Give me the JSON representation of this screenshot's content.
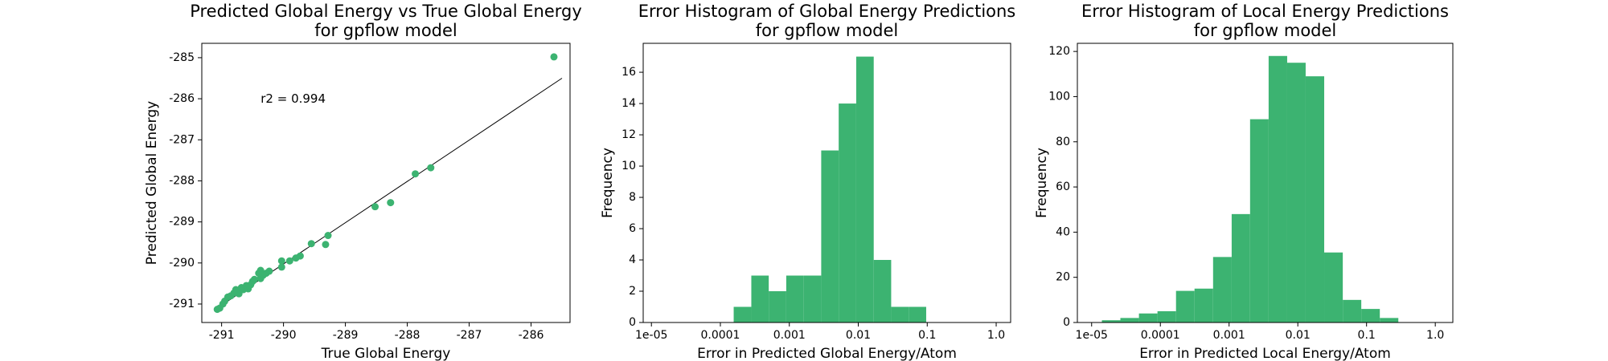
{
  "chart_data": [
    {
      "type": "scatter",
      "title": [
        "Predicted Global Energy vs True Global Energy",
        "for gpflow model"
      ],
      "xlabel": "True Global Energy",
      "ylabel": "Predicted Global Energy",
      "annotation": "r2 = 0.994",
      "color": "#3cb371",
      "x": [
        -285.63,
        -287.62,
        -287.87,
        -288.27,
        -288.52,
        -289.28,
        -289.32,
        -289.55,
        -289.73,
        -289.8,
        -289.9,
        -290.03,
        -290.03,
        -290.23,
        -290.28,
        -290.33,
        -290.37,
        -290.37,
        -290.4,
        -290.47,
        -290.5,
        -290.53,
        -290.57,
        -290.6,
        -290.65,
        -290.68,
        -290.72,
        -290.77,
        -290.8,
        -290.85,
        -290.9,
        -290.95,
        -290.98,
        -291.03,
        -291.07
      ],
      "y": [
        -284.98,
        -287.68,
        -287.83,
        -288.53,
        -288.63,
        -289.33,
        -289.55,
        -289.53,
        -289.83,
        -289.88,
        -289.95,
        -289.95,
        -290.1,
        -290.2,
        -290.25,
        -290.3,
        -290.18,
        -290.38,
        -290.25,
        -290.4,
        -290.45,
        -290.53,
        -290.63,
        -290.55,
        -290.65,
        -290.6,
        -290.75,
        -290.65,
        -290.73,
        -290.8,
        -290.83,
        -290.93,
        -291.0,
        -291.1,
        -291.13
      ],
      "fit_line": {
        "x": [
          -291.07,
          -285.5
        ],
        "y": [
          -291.1,
          -285.5
        ]
      },
      "xlim": [
        -291.32,
        -285.37
      ],
      "ylim": [
        -291.45,
        -284.65
      ],
      "xticks": [
        -291,
        -290,
        -289,
        -288,
        -287,
        -286
      ],
      "yticks": [
        -291,
        -290,
        -289,
        -288,
        -287,
        -286,
        -285
      ]
    },
    {
      "type": "histogram",
      "title": [
        "Error Histogram of Global Energy Predictions",
        "for gpflow model"
      ],
      "xlabel": "Error in Predicted Global Energy/Atom",
      "ylabel": "Frequency",
      "color": "#3cb371",
      "xscale": "log",
      "bins": [
        0.000156,
        0.000281,
        0.000503,
        0.000902,
        0.00162,
        0.0029,
        0.0052,
        0.00933,
        0.01675,
        0.03,
        0.0538,
        0.0966
      ],
      "values": [
        1,
        3,
        2,
        3,
        3,
        11,
        14,
        17,
        4,
        1,
        1
      ],
      "xlim": [
        7.6e-06,
        1.62
      ],
      "ylim": [
        0,
        17.85
      ],
      "xticks": [
        {
          "value": 1e-05,
          "label": "1e-05"
        },
        0.0001,
        0.001,
        0.01,
        0.1,
        {
          "value": 1,
          "label": "1.0"
        }
      ],
      "yticks": [
        0,
        2,
        4,
        6,
        8,
        10,
        12,
        14,
        16
      ]
    },
    {
      "type": "histogram",
      "title": [
        "Error Histogram of Local Energy Predictions",
        "for gpflow model"
      ],
      "xlabel": "Error in Predicted Local Energy/Atom",
      "ylabel": "Frequency",
      "color": "#3cb371",
      "xscale": "log",
      "bins": [
        1.41e-05,
        2.62e-05,
        4.88e-05,
        9.08e-05,
        0.000169,
        0.000314,
        0.000585,
        0.00109,
        0.00202,
        0.00376,
        0.007,
        0.013,
        0.0242,
        0.0451,
        0.0838,
        0.156,
        0.29
      ],
      "values": [
        1,
        2,
        4,
        5,
        14,
        15,
        29,
        48,
        90,
        118,
        115,
        109,
        31,
        10,
        6,
        2
      ],
      "xlim": [
        6.2e-06,
        1.8
      ],
      "ylim": [
        0,
        123.6
      ],
      "xticks": [
        {
          "value": 1e-05,
          "label": "1e-05"
        },
        0.0001,
        0.001,
        0.01,
        0.1,
        {
          "value": 1,
          "label": "1.0"
        }
      ],
      "yticks": [
        0,
        20,
        40,
        60,
        80,
        100,
        120
      ]
    }
  ]
}
